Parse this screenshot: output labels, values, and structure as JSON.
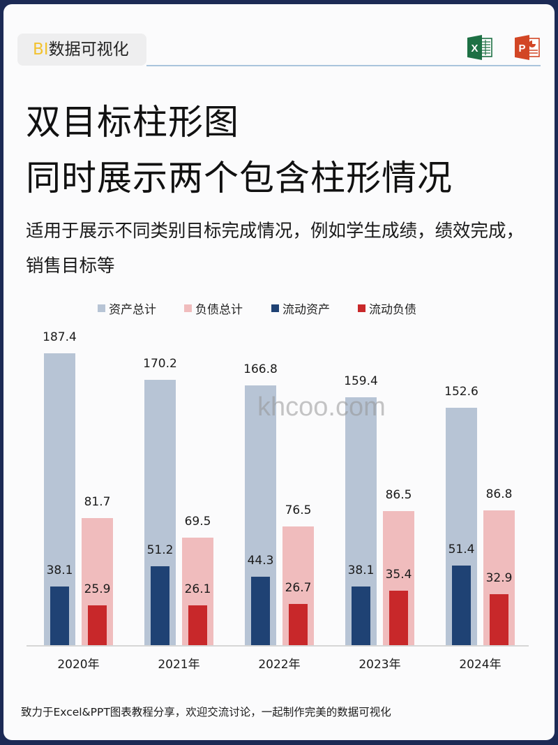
{
  "brand": {
    "prefix": "BI",
    "name": "数据可视化"
  },
  "icons": {
    "excel": "excel-icon",
    "powerpoint": "powerpoint-icon"
  },
  "title": {
    "line1": "双目标柱形图",
    "line2": "同时展示两个包含柱形情况"
  },
  "subtitle": "适用于展示不同类别目标完成情况，例如学生成绩，绩效完成，销售目标等",
  "watermark": "khcoo.com",
  "footer": "致力于Excel&PPT图表教程分享，欢迎交流讨论，一起制作完美的数据可视化",
  "colors": {
    "total_assets": "#b7c4d5",
    "total_liabilities": "#f0bcbd",
    "current_assets": "#1f4274",
    "current_liabilities": "#c8282a",
    "frame": "#1c2a55",
    "brand_accent": "#f2c230"
  },
  "chart_data": {
    "type": "bar",
    "title": "双目标柱形图",
    "categories": [
      "2020年",
      "2021年",
      "2022年",
      "2023年",
      "2024年"
    ],
    "series": [
      {
        "name": "资产总计",
        "values": [
          187.4,
          170.2,
          166.8,
          159.4,
          152.6
        ]
      },
      {
        "name": "负债总计",
        "values": [
          81.7,
          69.5,
          76.5,
          86.5,
          86.8
        ]
      },
      {
        "name": "流动资产",
        "values": [
          38.1,
          51.2,
          44.3,
          38.1,
          51.4
        ]
      },
      {
        "name": "流动负债",
        "values": [
          25.9,
          26.1,
          26.7,
          35.4,
          32.9
        ]
      }
    ],
    "overlay_pairs": [
      [
        "资产总计",
        "流动资产"
      ],
      [
        "负债总计",
        "流动负债"
      ]
    ],
    "xlabel": "",
    "ylabel": "",
    "ylim": [
      0,
      187.4
    ],
    "grid": false,
    "legend_position": "top",
    "data_labels": true
  }
}
